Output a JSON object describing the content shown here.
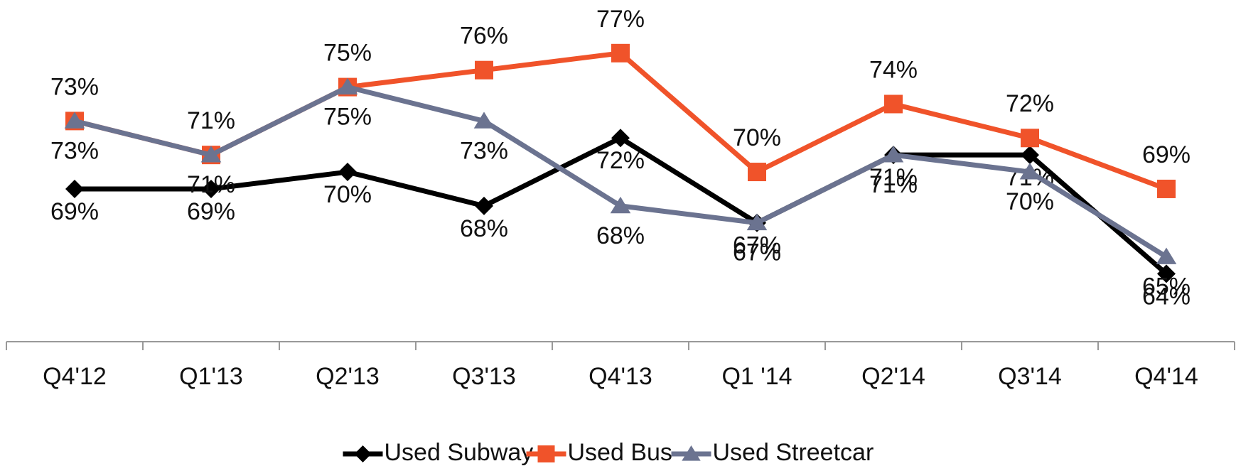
{
  "chart_data": {
    "type": "line",
    "categories": [
      "Q4'12",
      "Q1'13",
      "Q2'13",
      "Q3'13",
      "Q4'13",
      "Q1 '14",
      "Q2'14",
      "Q3'14",
      "Q4'14"
    ],
    "series": [
      {
        "name": "Used Subway",
        "color": "#000000",
        "marker": "diamond",
        "values": [
          69,
          69,
          70,
          68,
          72,
          67,
          71,
          71,
          64
        ],
        "value_labels": [
          "69%",
          "69%",
          "70%",
          "68%",
          "72%",
          "67%",
          "71%",
          "71%",
          "64%"
        ]
      },
      {
        "name": "Used Bus",
        "color": "#f0532a",
        "marker": "square",
        "values": [
          73,
          71,
          75,
          76,
          77,
          70,
          74,
          72,
          69
        ],
        "value_labels": [
          "73%",
          "71%",
          "75%",
          "76%",
          "77%",
          "70%",
          "74%",
          "72%",
          "69%"
        ]
      },
      {
        "name": "Used Streetcar",
        "color": "#6b7390",
        "marker": "triangle",
        "values": [
          73,
          71,
          75,
          73,
          68,
          67,
          71,
          70,
          65
        ],
        "value_labels": [
          "73%",
          "71%",
          "75%",
          "73%",
          "68%",
          "67%",
          "71%",
          "70%",
          "65%"
        ]
      }
    ],
    "ylim": [
      60,
      79
    ],
    "legend": "bottom"
  }
}
